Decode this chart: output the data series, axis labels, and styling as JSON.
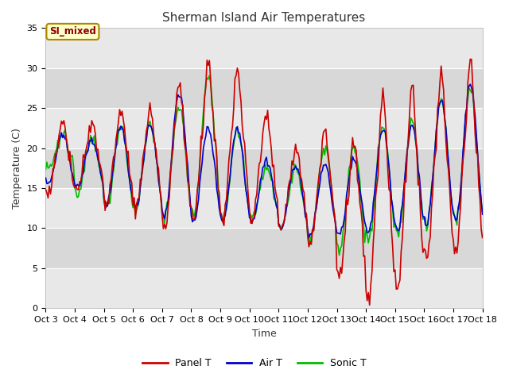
{
  "title": "Sherman Island Air Temperatures",
  "xlabel": "Time",
  "ylabel": "Temperature (C)",
  "ylim": [
    0,
    35
  ],
  "xlim": [
    0,
    360
  ],
  "fig_bg_color": "#ffffff",
  "plot_bg_color": "#f0f0f0",
  "grid_color": "#ffffff",
  "label_color": "#333333",
  "annotation_text": "SI_mixed",
  "annotation_bg": "#ffffcc",
  "annotation_border": "#aa8800",
  "annotation_text_color": "#8B0000",
  "tick_labels": [
    "Oct 3",
    "Oct 4",
    "Oct 5",
    "Oct 6",
    "Oct 7",
    "Oct 8",
    "Oct 9",
    "Oct 10",
    "Oct 11",
    "Oct 12",
    "Oct 13",
    "Oct 14",
    "Oct 15",
    "Oct 16",
    "Oct 17",
    "Oct 18"
  ],
  "tick_positions": [
    0,
    24,
    48,
    72,
    96,
    120,
    144,
    168,
    192,
    216,
    240,
    264,
    288,
    312,
    336,
    360
  ],
  "line_colors": {
    "panel": "#cc0000",
    "air": "#0000cc",
    "sonic": "#00bb00"
  },
  "line_widths": {
    "panel": 1.2,
    "air": 1.2,
    "sonic": 1.2
  },
  "legend_labels": [
    "Panel T",
    "Air T",
    "Sonic T"
  ],
  "band_colors": [
    "#e8e8e8",
    "#d8d8d8"
  ],
  "band_ranges": [
    [
      0,
      5
    ],
    [
      5,
      10
    ],
    [
      10,
      15
    ],
    [
      15,
      20
    ],
    [
      20,
      25
    ],
    [
      25,
      30
    ],
    [
      30,
      35
    ]
  ]
}
